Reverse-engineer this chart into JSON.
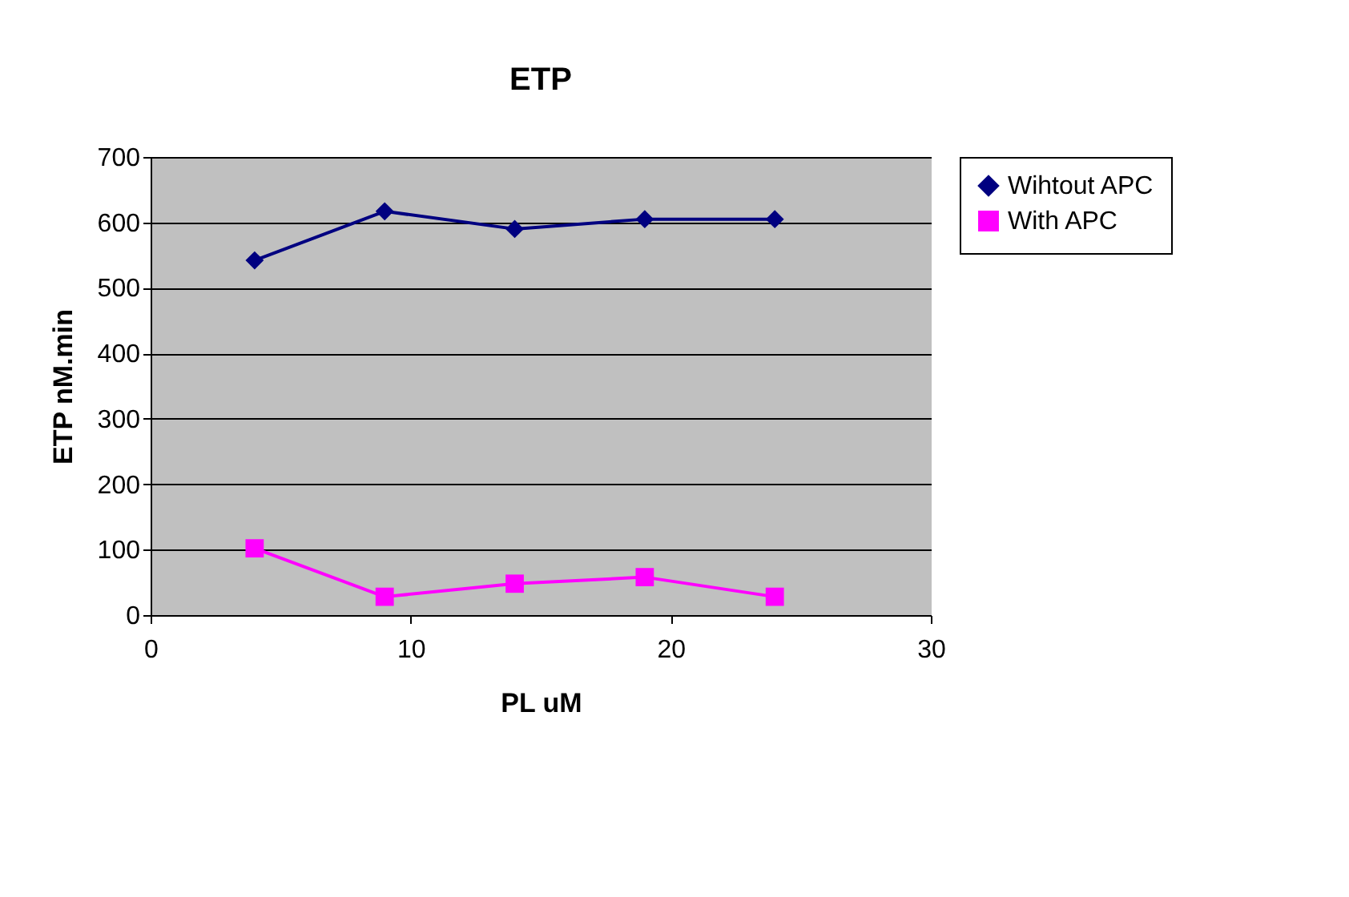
{
  "chart_data": {
    "type": "line",
    "title": "ETP",
    "xlabel": "PL uM",
    "ylabel": "ETP nM.min",
    "x": [
      4,
      9,
      14,
      19,
      24
    ],
    "series": [
      {
        "name": "Wihtout APC",
        "color": "#000080",
        "marker": "diamond",
        "values": [
          542,
          617,
          590,
          605,
          605
        ]
      },
      {
        "name": "With APC",
        "color": "#ff00ff",
        "marker": "square",
        "values": [
          102,
          28,
          48,
          58,
          28
        ]
      }
    ],
    "xlim": [
      0,
      30
    ],
    "xticks": [
      0,
      10,
      20,
      30
    ],
    "ylim": [
      0,
      700
    ],
    "yticks": [
      0,
      100,
      200,
      300,
      400,
      500,
      600,
      700
    ],
    "grid": "y",
    "legend": "right",
    "line_style": "solid"
  }
}
